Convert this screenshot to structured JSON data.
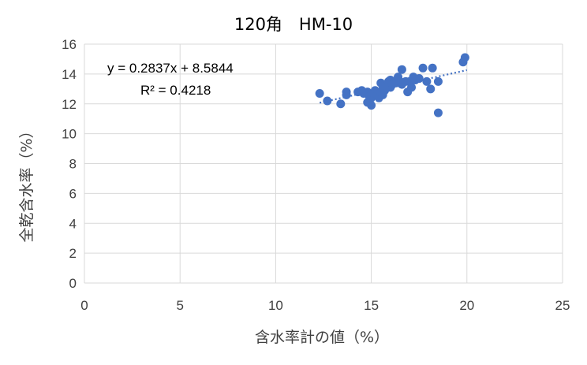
{
  "chart_data": {
    "type": "scatter",
    "title": "120角　HM-10",
    "xlabel": "含水率計の値（%）",
    "ylabel": "全乾含水率（%）",
    "xlim": [
      0,
      25
    ],
    "ylim": [
      0,
      16
    ],
    "xticks": [
      "0",
      "5",
      "10",
      "15",
      "20",
      "25"
    ],
    "yticks": [
      "0",
      "2",
      "4",
      "6",
      "8",
      "10",
      "12",
      "14",
      "16"
    ],
    "grid": true,
    "marker_color": "#4472c4",
    "trendline": {
      "slope": 0.2837,
      "intercept": 8.5844,
      "x_range": [
        12.3,
        20.0
      ],
      "equation": "y = 0.2837x + 8.5844",
      "r2": "R² = 0.4218"
    },
    "points": [
      [
        12.3,
        12.7
      ],
      [
        12.7,
        12.2
      ],
      [
        13.4,
        12.0
      ],
      [
        13.7,
        12.8
      ],
      [
        13.7,
        12.6
      ],
      [
        14.3,
        12.8
      ],
      [
        14.5,
        12.9
      ],
      [
        14.6,
        12.7
      ],
      [
        14.8,
        12.8
      ],
      [
        14.8,
        12.1
      ],
      [
        14.9,
        12.5
      ],
      [
        15.0,
        11.9
      ],
      [
        15.0,
        12.4
      ],
      [
        15.1,
        12.7
      ],
      [
        15.2,
        12.9
      ],
      [
        15.3,
        12.6
      ],
      [
        15.4,
        12.4
      ],
      [
        15.5,
        12.8
      ],
      [
        15.5,
        13.4
      ],
      [
        15.6,
        12.6
      ],
      [
        15.6,
        13.0
      ],
      [
        15.7,
        12.9
      ],
      [
        15.8,
        13.2
      ],
      [
        15.9,
        13.5
      ],
      [
        16.0,
        13.1
      ],
      [
        16.0,
        13.6
      ],
      [
        16.1,
        13.3
      ],
      [
        16.2,
        13.4
      ],
      [
        16.3,
        13.4
      ],
      [
        16.4,
        13.8
      ],
      [
        16.5,
        13.5
      ],
      [
        16.6,
        13.3
      ],
      [
        16.6,
        14.3
      ],
      [
        16.8,
        13.5
      ],
      [
        16.9,
        12.8
      ],
      [
        17.0,
        13.5
      ],
      [
        17.1,
        13.1
      ],
      [
        17.2,
        13.8
      ],
      [
        17.3,
        13.6
      ],
      [
        17.5,
        13.7
      ],
      [
        17.7,
        14.4
      ],
      [
        17.9,
        13.5
      ],
      [
        18.1,
        13.0
      ],
      [
        18.2,
        14.4
      ],
      [
        18.5,
        11.4
      ],
      [
        18.5,
        13.5
      ],
      [
        19.8,
        14.8
      ],
      [
        19.9,
        15.1
      ]
    ]
  }
}
